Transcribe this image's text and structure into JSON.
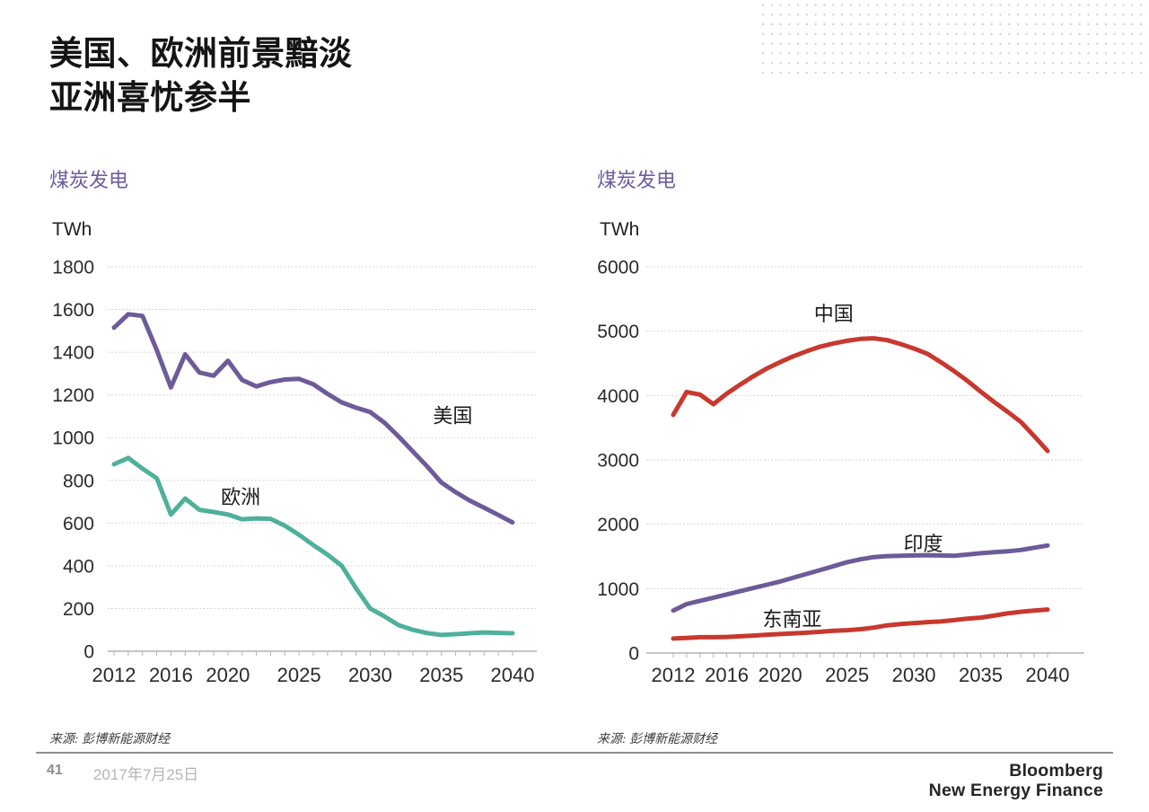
{
  "slide": {
    "title_line1": "美国、欧洲前景黯淡",
    "title_line2": "亚洲喜忧参半"
  },
  "footer": {
    "source": "来源: 彭博新能源财经",
    "page_number": "41",
    "date": "2017年7月25日",
    "logo_line1": "Bloomberg",
    "logo_line2": "New Energy Finance"
  },
  "colors": {
    "purple": "#6d5b99",
    "teal": "#4fb09c",
    "red": "#c7382e",
    "subtitle_purple": "#6e5ba0",
    "grid": "#c9c9c9",
    "axis": "#b3b3b3",
    "tick_text": "#2a2a2a"
  },
  "chart_data": [
    {
      "type": "line",
      "title": "煤炭发电",
      "unit_label": "TWh",
      "legend_position": "inline-labels",
      "grid": true,
      "x": [
        2012,
        2013,
        2014,
        2015,
        2016,
        2017,
        2018,
        2019,
        2020,
        2021,
        2022,
        2023,
        2024,
        2025,
        2026,
        2027,
        2028,
        2029,
        2030,
        2031,
        2032,
        2033,
        2034,
        2035,
        2036,
        2037,
        2038,
        2039,
        2040
      ],
      "xticks": [
        2012,
        2016,
        2020,
        2025,
        2030,
        2035,
        2040
      ],
      "ylim": [
        0,
        1800
      ],
      "ytick_step": 200,
      "series": [
        {
          "name": "美国",
          "color_key": "purple",
          "label_pos": {
            "x": 2035.8,
            "y": 1070
          },
          "values": [
            1515,
            1578,
            1570,
            1410,
            1235,
            1390,
            1305,
            1290,
            1360,
            1270,
            1240,
            1260,
            1272,
            1275,
            1250,
            1205,
            1165,
            1140,
            1120,
            1070,
            1005,
            935,
            865,
            790,
            745,
            705,
            672,
            638,
            603
          ]
        },
        {
          "name": "欧洲",
          "color_key": "teal",
          "label_pos": {
            "x": 2020.9,
            "y": 690
          },
          "values": [
            875,
            905,
            855,
            810,
            640,
            715,
            662,
            652,
            640,
            618,
            622,
            620,
            588,
            545,
            497,
            452,
            400,
            295,
            200,
            163,
            122,
            100,
            85,
            76,
            80,
            84,
            88,
            86,
            84
          ]
        }
      ]
    },
    {
      "type": "line",
      "title": "煤炭发电",
      "unit_label": "TWh",
      "legend_position": "inline-labels",
      "grid": true,
      "x": [
        2012,
        2013,
        2014,
        2015,
        2016,
        2017,
        2018,
        2019,
        2020,
        2021,
        2022,
        2023,
        2024,
        2025,
        2026,
        2027,
        2028,
        2029,
        2030,
        2031,
        2032,
        2033,
        2034,
        2035,
        2036,
        2037,
        2038,
        2039,
        2040
      ],
      "xticks": [
        2012,
        2016,
        2020,
        2025,
        2030,
        2035,
        2040
      ],
      "ylim": [
        0,
        6000
      ],
      "ytick_step": 1000,
      "series": [
        {
          "name": "中国",
          "color_key": "red",
          "label_pos": {
            "x": 2024,
            "y": 5160
          },
          "values": [
            3700,
            4055,
            4015,
            3865,
            4030,
            4170,
            4300,
            4420,
            4520,
            4610,
            4690,
            4760,
            4810,
            4850,
            4880,
            4890,
            4860,
            4800,
            4730,
            4650,
            4520,
            4380,
            4230,
            4060,
            3900,
            3750,
            3590,
            3370,
            3140
          ]
        },
        {
          "name": "印度",
          "color_key": "purple",
          "label_pos": {
            "x": 2030.7,
            "y": 1590
          },
          "values": [
            660,
            760,
            810,
            860,
            910,
            960,
            1010,
            1060,
            1110,
            1170,
            1230,
            1290,
            1350,
            1410,
            1455,
            1490,
            1505,
            1510,
            1515,
            1520,
            1515,
            1510,
            1530,
            1550,
            1565,
            1580,
            1600,
            1635,
            1670
          ]
        },
        {
          "name": "东南亚",
          "color_key": "red",
          "label_pos": {
            "x": 2020.9,
            "y": 420
          },
          "values": [
            225,
            235,
            245,
            245,
            250,
            260,
            270,
            285,
            295,
            305,
            315,
            330,
            345,
            355,
            370,
            395,
            430,
            450,
            465,
            480,
            490,
            510,
            535,
            550,
            580,
            615,
            640,
            660,
            675
          ]
        }
      ]
    }
  ]
}
